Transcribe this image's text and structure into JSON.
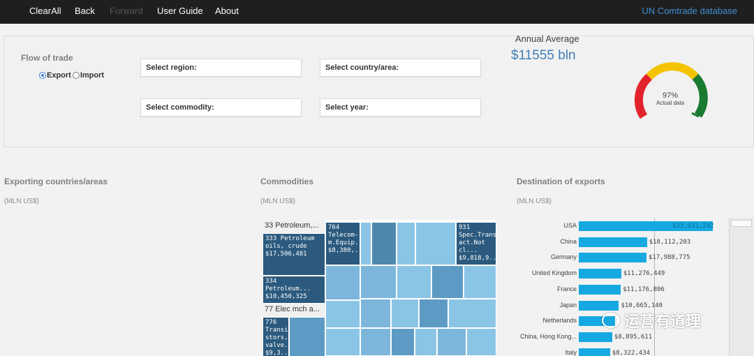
{
  "nav": {
    "items": [
      {
        "label": "ClearAll",
        "enabled": true
      },
      {
        "label": "Back",
        "enabled": true
      },
      {
        "label": "Forward",
        "enabled": false
      },
      {
        "label": "User Guide",
        "enabled": true
      },
      {
        "label": "About",
        "enabled": true
      }
    ],
    "right_link": "UN Comtrade database"
  },
  "filters": {
    "flow_title": "Flow of trade",
    "export_label": "Export",
    "import_label": "Import",
    "selected_flow": "Export",
    "region_label": "Select region:",
    "country_label": "Select country/area:",
    "commodity_label": "Select commodity:",
    "year_label": "Select year:"
  },
  "kpi": {
    "label": "Annual Average",
    "value": "$11555 bln",
    "gauge_percent": 97,
    "gauge_text": "97%",
    "gauge_caption": "Actual data",
    "colors": {
      "red": "#e3232b",
      "yellow": "#f5c400",
      "green": "#1a7a30"
    }
  },
  "sections": {
    "exporting": {
      "title": "Exporting countries/areas",
      "unit": "(MLN US$)"
    },
    "commodities": {
      "title": "Commodities",
      "unit": "(MLN US$)"
    },
    "destination": {
      "title": "Destination of exports",
      "unit": "(MLN US$)"
    }
  },
  "treemap": {
    "group1_header": "33 Petroleum,...",
    "group2_header": "77 Elec mch a...",
    "tiles": {
      "t333": "333 Petroleum oils, crude $17,506,481",
      "t334": "334 Petroleum... $10,450,325",
      "t764": "764 Telecom-m.Equip... $8,380,...",
      "t931": "931 Spec.Trans-act.Not cl... $9,818,9...",
      "t776": "776 Transi-stors,-valve... $9,3..."
    }
  },
  "chart_data": {
    "type": "bar",
    "orientation": "horizontal",
    "categories": [
      "USA",
      "China",
      "Germany",
      "United Kingdom",
      "France",
      "Japan",
      "Netherlands",
      "China, Hong Kong...",
      "Italy"
    ],
    "values": [
      35631242,
      18112203,
      17988775,
      11276449,
      11176806,
      10665140,
      9716000,
      8895611,
      8322434
    ],
    "value_labels": [
      "$35,631,242",
      "$18,112,203",
      "$17,988,775",
      "$11,276,449",
      "$11,176,806",
      "$10,665,140",
      "",
      "$8,895,611",
      "$8,322,434"
    ],
    "bar_color": "#16a9e1",
    "title": "Destination of exports",
    "unit": "(MLN US$)"
  },
  "watermark": "运营有道理"
}
